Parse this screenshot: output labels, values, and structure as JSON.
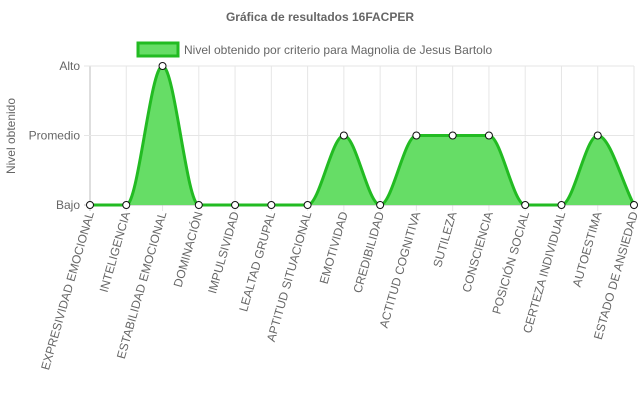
{
  "chart_data": {
    "type": "area",
    "title": "Gráfica de resultados 16FACPER",
    "ylabel": "Nivel obtenido",
    "xlabel": "",
    "y_categories": [
      "Bajo",
      "Promedio",
      "Alto"
    ],
    "ylim": [
      0,
      2
    ],
    "grid": true,
    "legend_position": "top",
    "categories": [
      "EXPRESIVIDAD EMOCIONAL",
      "INTELIGENCIA",
      "ESTABILIDAD EMOCIONAL",
      "DOMINACIÓN",
      "IMPULSIVIDAD",
      "LEALTAD GRUPAL",
      "APTITUD SITUACIONAL",
      "EMOTIVIDAD",
      "CREDIBILIDAD",
      "ACTITUD COGNITIVA",
      "SUTILEZA",
      "CONSCIENCIA",
      "POSICIÓN SOCIAL",
      "CERTEZA INDIVIDUAL",
      "AUTOESTIMA",
      "ESTADO DE ANSIEDAD"
    ],
    "series": [
      {
        "name": "Nivel obtenido por criterio para Magnolia de Jesus Bartolo",
        "values": [
          0,
          0,
          2,
          0,
          0,
          0,
          0,
          1,
          0,
          1,
          1,
          1,
          0,
          0,
          1,
          0
        ],
        "fill_color": "#66dd66",
        "line_color": "#22bb22"
      }
    ]
  }
}
